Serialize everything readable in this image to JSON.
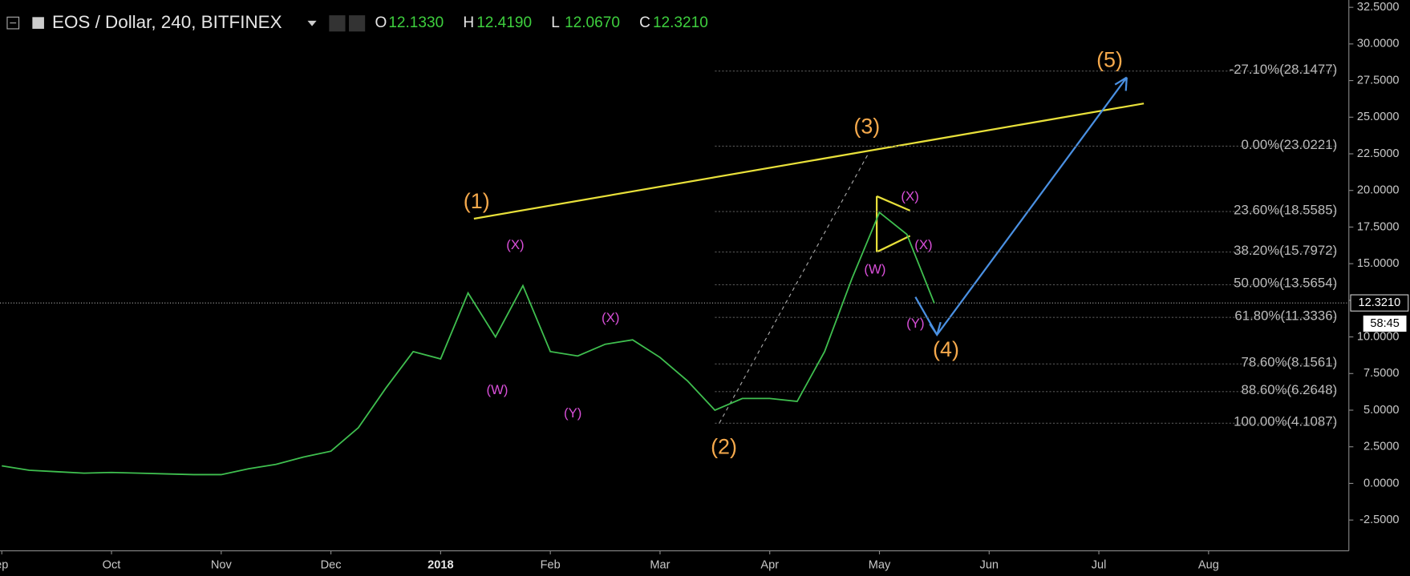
{
  "chart_data": {
    "type": "line",
    "title": "EOS / Dollar, 240, BITFINEX",
    "ohlc": [
      [
        "O",
        "12.1330"
      ],
      [
        "H",
        "12.4190"
      ],
      [
        "L",
        "12.0670"
      ],
      [
        "C",
        "12.3210"
      ]
    ],
    "categories": [
      "ep",
      null,
      null,
      null,
      "Oct",
      null,
      null,
      null,
      "Nov",
      null,
      null,
      null,
      "Dec",
      null,
      null,
      null,
      "2018",
      null,
      null,
      null,
      "Feb",
      null,
      null,
      null,
      "Mar",
      null,
      null,
      null,
      "Apr",
      null,
      null,
      null,
      "May",
      null,
      null,
      null,
      "Jun",
      null,
      null,
      null,
      "Jul",
      null,
      null,
      null,
      "Aug",
      null,
      null,
      null
    ],
    "values": [
      1.2,
      0.9,
      0.8,
      0.7,
      0.75,
      0.7,
      0.65,
      0.6,
      0.6,
      1.0,
      1.3,
      1.8,
      2.2,
      3.8,
      6.5,
      9.0,
      8.5,
      13.0,
      10.0,
      13.5,
      9.0,
      8.7,
      9.5,
      9.8,
      8.6,
      7.0,
      5.0,
      5.8,
      5.8,
      5.6,
      9.0,
      14.0,
      18.5,
      17.0,
      12.3,
      null,
      null,
      null,
      null,
      null,
      null,
      null,
      null,
      null,
      null,
      null,
      null,
      null
    ],
    "color": "#3fbf4f",
    "ylim": [
      -4.6,
      33.0
    ],
    "yticks": [
      {
        "value": -2.5,
        "label": "-2.5000"
      },
      {
        "value": 0,
        "label": "0.0000"
      },
      {
        "value": 2.5,
        "label": "2.5000"
      },
      {
        "value": 5,
        "label": "5.0000"
      },
      {
        "value": 7.5,
        "label": "7.5000"
      },
      {
        "value": 10,
        "label": "10.0000"
      },
      {
        "value": 12.5,
        "label": "12.5000"
      },
      {
        "value": 15,
        "label": "15.0000"
      },
      {
        "value": 17.5,
        "label": "17.5000"
      },
      {
        "value": 20,
        "label": "20.0000"
      },
      {
        "value": 22.5,
        "label": "22.5000"
      },
      {
        "value": 25,
        "label": "25.0000"
      },
      {
        "value": 27.5,
        "label": "27.5000"
      },
      {
        "value": 30,
        "label": "30.0000"
      },
      {
        "value": 32.5,
        "label": "32.5000"
      }
    ],
    "fib_levels": [
      {
        "value": 28.1477,
        "label": "-27.10%(28.1477)"
      },
      {
        "value": 23.0221,
        "label": "0.00%(23.0221)"
      },
      {
        "value": 18.5585,
        "label": "23.60%(18.5585)"
      },
      {
        "value": 15.7972,
        "label": "38.20%(15.7972)"
      },
      {
        "value": 13.5654,
        "label": "50.00%(13.5654)"
      },
      {
        "value": 11.3336,
        "label": "61.80%(11.3336)"
      },
      {
        "value": 8.1561,
        "label": "78.60%(8.1561)"
      },
      {
        "value": 6.2648,
        "label": "88.60%(6.2648)"
      },
      {
        "value": 4.1087,
        "label": "100.00%(4.1087)"
      }
    ],
    "last_price": {
      "value": 12.321,
      "label": "12.3210"
    },
    "countdown": "58:45",
    "wave_labels": [
      "(1)",
      "(2)",
      "(3)",
      "(4)",
      "(5)"
    ],
    "sub_wave_labels": [
      "(W)",
      "(X)",
      "(Y)",
      "(X)",
      "(W)",
      "(X)",
      "(X)",
      "(Y)"
    ]
  }
}
